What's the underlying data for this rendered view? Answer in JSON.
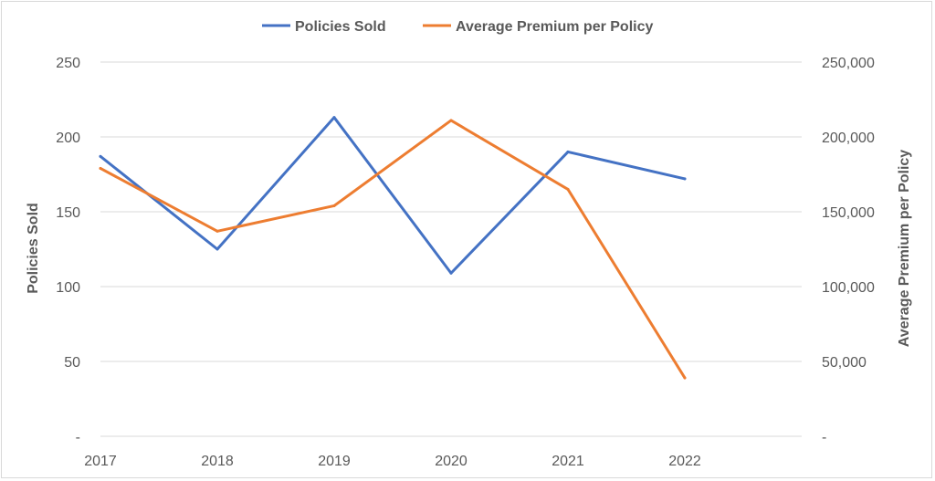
{
  "chart_data": {
    "type": "line",
    "categories": [
      "2017",
      "2018",
      "2019",
      "2020",
      "2021",
      "2022"
    ],
    "series": [
      {
        "name": "Policies Sold",
        "axis": "left",
        "color": "#4472c4",
        "values": [
          187,
          125,
          213,
          109,
          190,
          172
        ]
      },
      {
        "name": "Average Premium per Policy",
        "axis": "right",
        "color": "#ed7d31",
        "values": [
          179000,
          137000,
          154000,
          211000,
          165000,
          39000
        ]
      }
    ],
    "y_left": {
      "label": "Policies Sold",
      "ylim": [
        0,
        250
      ],
      "ticks": [
        0,
        50,
        100,
        150,
        200,
        250
      ],
      "tick_labels": [
        "-",
        "50",
        "100",
        "150",
        "200",
        "250"
      ]
    },
    "y_right": {
      "label": "Average Premium per Policy",
      "ylim": [
        0,
        250000
      ],
      "ticks": [
        0,
        50000,
        100000,
        150000,
        200000,
        250000
      ],
      "tick_labels": [
        "-",
        "50,000",
        "100,000",
        "150,000",
        "200,000",
        "250,000"
      ]
    },
    "grid": true,
    "legend_position": "top"
  }
}
